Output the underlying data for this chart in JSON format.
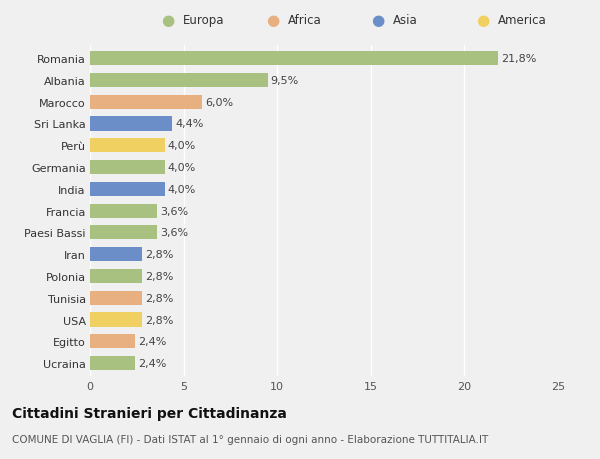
{
  "categories": [
    "Romania",
    "Albania",
    "Marocco",
    "Sri Lanka",
    "Perù",
    "Germania",
    "India",
    "Francia",
    "Paesi Bassi",
    "Iran",
    "Polonia",
    "Tunisia",
    "USA",
    "Egitto",
    "Ucraina"
  ],
  "values": [
    21.8,
    9.5,
    6.0,
    4.4,
    4.0,
    4.0,
    4.0,
    3.6,
    3.6,
    2.8,
    2.8,
    2.8,
    2.8,
    2.4,
    2.4
  ],
  "labels": [
    "21,8%",
    "9,5%",
    "6,0%",
    "4,4%",
    "4,0%",
    "4,0%",
    "4,0%",
    "3,6%",
    "3,6%",
    "2,8%",
    "2,8%",
    "2,8%",
    "2,8%",
    "2,4%",
    "2,4%"
  ],
  "continents": [
    "Europa",
    "Europa",
    "Africa",
    "Asia",
    "America",
    "Europa",
    "Asia",
    "Europa",
    "Europa",
    "Asia",
    "Europa",
    "Africa",
    "America",
    "Africa",
    "Europa"
  ],
  "colors": {
    "Europa": "#a8c080",
    "Africa": "#e8b080",
    "Asia": "#6b8ec8",
    "America": "#f0d060"
  },
  "legend_order": [
    "Europa",
    "Africa",
    "Asia",
    "America"
  ],
  "xlim": [
    0,
    25
  ],
  "xticks": [
    0,
    5,
    10,
    15,
    20,
    25
  ],
  "title": "Cittadini Stranieri per Cittadinanza",
  "subtitle": "COMUNE DI VAGLIA (FI) - Dati ISTAT al 1° gennaio di ogni anno - Elaborazione TUTTITALIA.IT",
  "bg_color": "#f0f0f0",
  "bar_height": 0.65,
  "label_fontsize": 8,
  "title_fontsize": 10,
  "subtitle_fontsize": 7.5,
  "tick_fontsize": 8,
  "legend_fontsize": 8.5
}
